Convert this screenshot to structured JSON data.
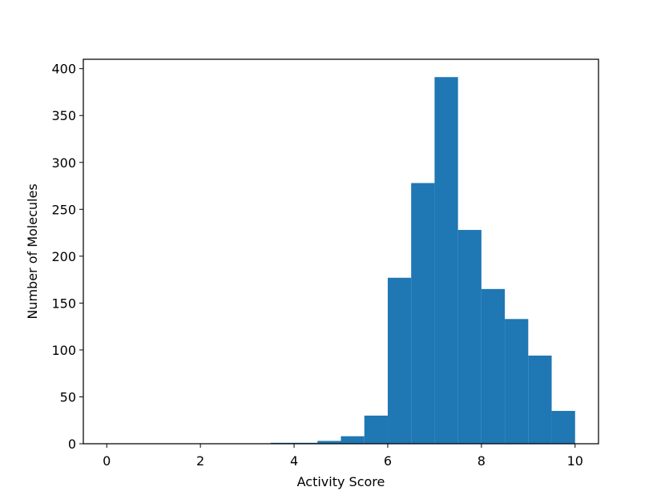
{
  "chart_data": {
    "type": "bar",
    "subtype": "histogram",
    "xlabel": "Activity Score",
    "ylabel": "Number of Molecules",
    "xlim": [
      -0.5,
      10.5
    ],
    "ylim": [
      0,
      410
    ],
    "xticks": [
      0,
      2,
      4,
      6,
      8,
      10
    ],
    "yticks": [
      0,
      50,
      100,
      150,
      200,
      250,
      300,
      350,
      400
    ],
    "grid": false,
    "legend": "none",
    "bar_color": "#1f77b4",
    "bins": [
      {
        "start": 0.0,
        "end": 0.5,
        "count": 0
      },
      {
        "start": 0.5,
        "end": 1.0,
        "count": 0
      },
      {
        "start": 1.0,
        "end": 1.5,
        "count": 0
      },
      {
        "start": 1.5,
        "end": 2.0,
        "count": 0
      },
      {
        "start": 2.0,
        "end": 2.5,
        "count": 0
      },
      {
        "start": 2.5,
        "end": 3.0,
        "count": 0
      },
      {
        "start": 3.0,
        "end": 3.5,
        "count": 0
      },
      {
        "start": 3.5,
        "end": 4.0,
        "count": 1
      },
      {
        "start": 4.0,
        "end": 4.5,
        "count": 1
      },
      {
        "start": 4.5,
        "end": 5.0,
        "count": 3
      },
      {
        "start": 5.0,
        "end": 5.5,
        "count": 8
      },
      {
        "start": 5.5,
        "end": 6.0,
        "count": 30
      },
      {
        "start": 6.0,
        "end": 6.5,
        "count": 177
      },
      {
        "start": 6.5,
        "end": 7.0,
        "count": 278
      },
      {
        "start": 7.0,
        "end": 7.5,
        "count": 391
      },
      {
        "start": 7.5,
        "end": 8.0,
        "count": 228
      },
      {
        "start": 8.0,
        "end": 8.5,
        "count": 165
      },
      {
        "start": 8.5,
        "end": 9.0,
        "count": 133
      },
      {
        "start": 9.0,
        "end": 9.5,
        "count": 94
      },
      {
        "start": 9.5,
        "end": 10.0,
        "count": 35
      }
    ]
  }
}
